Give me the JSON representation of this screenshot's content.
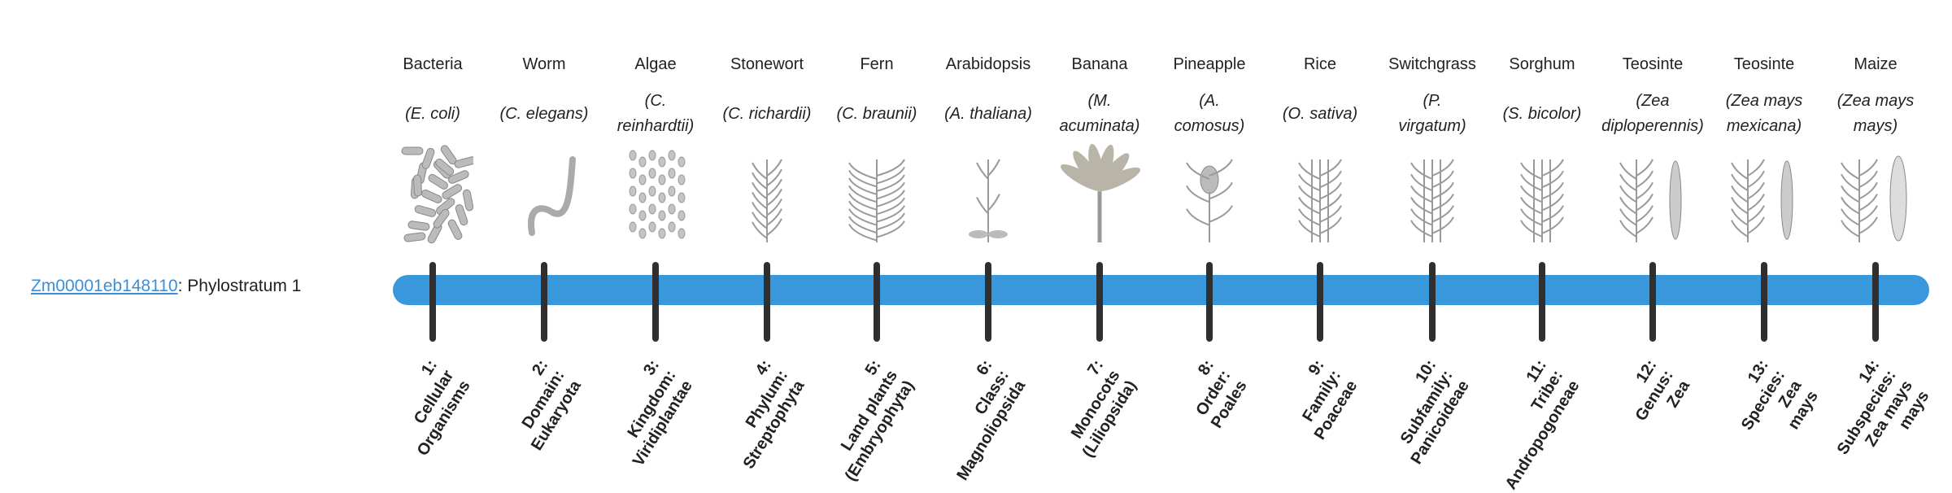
{
  "gene": {
    "id": "Zm00001eb148110",
    "suffix": ": Phylostratum 1"
  },
  "colors": {
    "bar": "#3898db",
    "tick": "#2f2f2f",
    "link": "#3a8fd8",
    "illustration": "#9a9a9a"
  },
  "strata": [
    {
      "common": "Bacteria",
      "latin": "(E. coli)",
      "rank": "1:\nCellular\nOrganisms",
      "icon": "bacteria"
    },
    {
      "common": "Worm",
      "latin": "(C. elegans)",
      "rank": "2:\nDomain:\nEukaryota",
      "icon": "worm"
    },
    {
      "common": "Algae",
      "latin": "(C.\nreinhardtii)",
      "rank": "3:\nKingdom:\nViridiplantae",
      "icon": "algae"
    },
    {
      "common": "Stonewort",
      "latin": "(C. richardii)",
      "rank": "4:\nPhylum:\nStreptophyta",
      "icon": "stonewort"
    },
    {
      "common": "Fern",
      "latin": "(C. braunii)",
      "rank": "5:\nLand plants\n(Embryophyta)",
      "icon": "fern"
    },
    {
      "common": "Arabidopsis",
      "latin": "(A. thaliana)",
      "rank": "6:\nClass:\nMagnoliopsida",
      "icon": "arabidopsis"
    },
    {
      "common": "Banana",
      "latin": "(M.\nacuminata)",
      "rank": "7:\nMonocots\n(Liliopsida)",
      "icon": "banana"
    },
    {
      "common": "Pineapple",
      "latin": "(A.\ncomosus)",
      "rank": "8:\nOrder:\nPoales",
      "icon": "pineapple"
    },
    {
      "common": "Rice",
      "latin": "(O. sativa)",
      "rank": "9:\nFamily:\nPoaceae",
      "icon": "rice"
    },
    {
      "common": "Switchgrass",
      "latin": "(P.\nvirgatum)",
      "rank": "10:\nSubfamily:\nPanicoideae",
      "icon": "switchgrass"
    },
    {
      "common": "Sorghum",
      "latin": "(S. bicolor)",
      "rank": "11:\nTribe:\nAndropogoneae",
      "icon": "sorghum"
    },
    {
      "common": "Teosinte",
      "latin": "(Zea\ndiploperennis)",
      "rank": "12:\nGenus:\nZea",
      "icon": "teosinte"
    },
    {
      "common": "Teosinte",
      "latin": "(Zea mays\nmexicana)",
      "rank": "13:\nSpecies:\nZea\nmays",
      "icon": "teosinte"
    },
    {
      "common": "Maize",
      "latin": "(Zea mays\nmays)",
      "rank": "14:\nSubspecies:\nZea mays\nmays",
      "icon": "maize"
    }
  ]
}
